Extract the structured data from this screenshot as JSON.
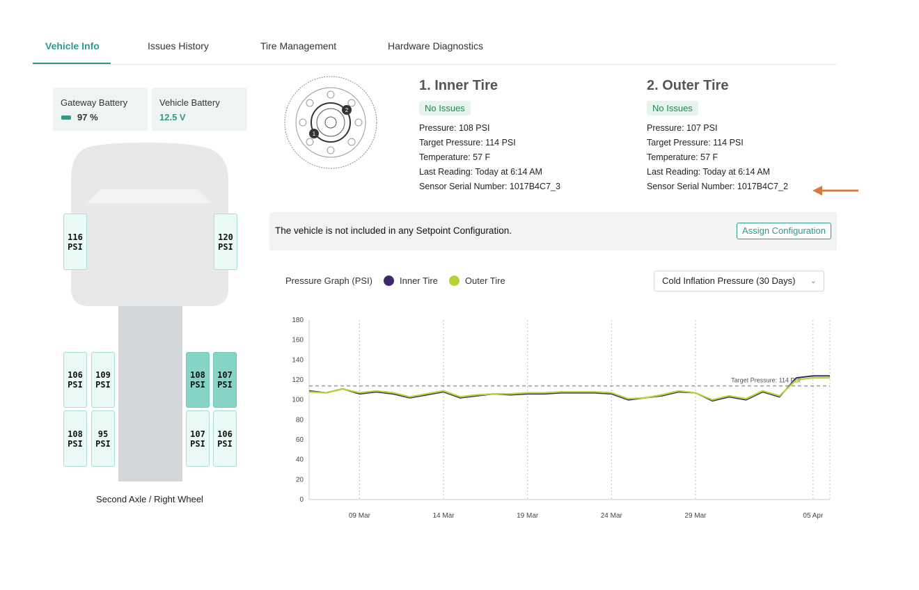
{
  "tabs": [
    {
      "label": "Vehicle Info",
      "active": true
    },
    {
      "label": "Issues History",
      "active": false
    },
    {
      "label": "Tire Management",
      "active": false
    },
    {
      "label": "Hardware Diagnostics",
      "active": false
    }
  ],
  "battery": {
    "gateway": {
      "label": "Gateway Battery",
      "value": "97 %"
    },
    "vehicle": {
      "label": "Vehicle Battery",
      "value": "12.5 V"
    }
  },
  "truck": {
    "tires": [
      {
        "value": "116",
        "unit": "PSI",
        "selected": false
      },
      {
        "value": "120",
        "unit": "PSI",
        "selected": false
      },
      {
        "value": "106",
        "unit": "PSI",
        "selected": false
      },
      {
        "value": "109",
        "unit": "PSI",
        "selected": false
      },
      {
        "value": "108",
        "unit": "PSI",
        "selected": true
      },
      {
        "value": "107",
        "unit": "PSI",
        "selected": true
      },
      {
        "value": "108",
        "unit": "PSI",
        "selected": false
      },
      {
        "value": "95",
        "unit": "PSI",
        "selected": false
      },
      {
        "value": "107",
        "unit": "PSI",
        "selected": false
      },
      {
        "value": "106",
        "unit": "PSI",
        "selected": false
      }
    ],
    "caption": "Second Axle / Right Wheel"
  },
  "wheel_markers": [
    "1",
    "2"
  ],
  "inner_tire": {
    "title": "1. Inner Tire",
    "status": "No Issues",
    "pressure": "Pressure: 108 PSI",
    "target": "Target Pressure: 114 PSI",
    "temperature": "Temperature: 57 F",
    "last_reading": "Last Reading: Today at 6:14 AM",
    "serial": "Sensor Serial Number: 1017B4C7_3"
  },
  "outer_tire": {
    "title": "2. Outer Tire",
    "status": "No Issues",
    "pressure": "Pressure: 107 PSI",
    "target": "Target Pressure: 114 PSI",
    "temperature": "Temperature: 57 F",
    "last_reading": "Last Reading: Today at 6:14 AM",
    "serial": "Sensor Serial Number: 1017B4C7_2"
  },
  "banner": {
    "text": "The vehicle is not included in any Setpoint Configuration.",
    "button": "Assign Configuration"
  },
  "graph": {
    "title": "Pressure Graph (PSI)",
    "dropdown": "Cold Inflation Pressure (30 Days)"
  },
  "colors": {
    "accent": "#2c9a87",
    "inner_series": "#3f2770",
    "outer_series": "#b5d334",
    "arrow": "#d9773e"
  },
  "chart_data": {
    "type": "line",
    "ylim": [
      0,
      180
    ],
    "yticks": [
      0,
      20,
      40,
      60,
      80,
      100,
      120,
      140,
      160,
      180
    ],
    "xticks": [
      "09 Mar",
      "14 Mar",
      "19 Mar",
      "24 Mar",
      "29 Mar",
      "05 Apr"
    ],
    "x": [
      "06 Mar",
      "07 Mar",
      "08 Mar",
      "09 Mar",
      "10 Mar",
      "11 Mar",
      "12 Mar",
      "13 Mar",
      "14 Mar",
      "15 Mar",
      "16 Mar",
      "17 Mar",
      "18 Mar",
      "19 Mar",
      "20 Mar",
      "21 Mar",
      "22 Mar",
      "23 Mar",
      "24 Mar",
      "25 Mar",
      "26 Mar",
      "27 Mar",
      "28 Mar",
      "29 Mar",
      "30 Mar",
      "31 Mar",
      "01 Apr",
      "02 Apr",
      "03 Apr",
      "04 Apr",
      "05 Apr",
      "06 Apr"
    ],
    "target": {
      "value": 114,
      "label": "Target Pressure: 114 PSI"
    },
    "series": [
      {
        "name": "Inner Tire",
        "color": "#3f2770",
        "values": [
          109,
          107,
          111,
          106,
          108,
          106,
          102,
          105,
          108,
          102,
          104,
          106,
          105,
          106,
          106,
          107,
          107,
          107,
          106,
          100,
          102,
          104,
          108,
          107,
          99,
          103,
          100,
          108,
          103,
          122,
          124,
          124
        ]
      },
      {
        "name": "Outer Tire",
        "color": "#b5d334",
        "values": [
          108,
          107,
          111,
          107,
          109,
          107,
          103,
          106,
          109,
          103,
          105,
          106,
          106,
          107,
          107,
          108,
          108,
          108,
          107,
          101,
          102,
          105,
          109,
          107,
          100,
          104,
          101,
          109,
          104,
          120,
          122,
          122
        ]
      }
    ]
  }
}
